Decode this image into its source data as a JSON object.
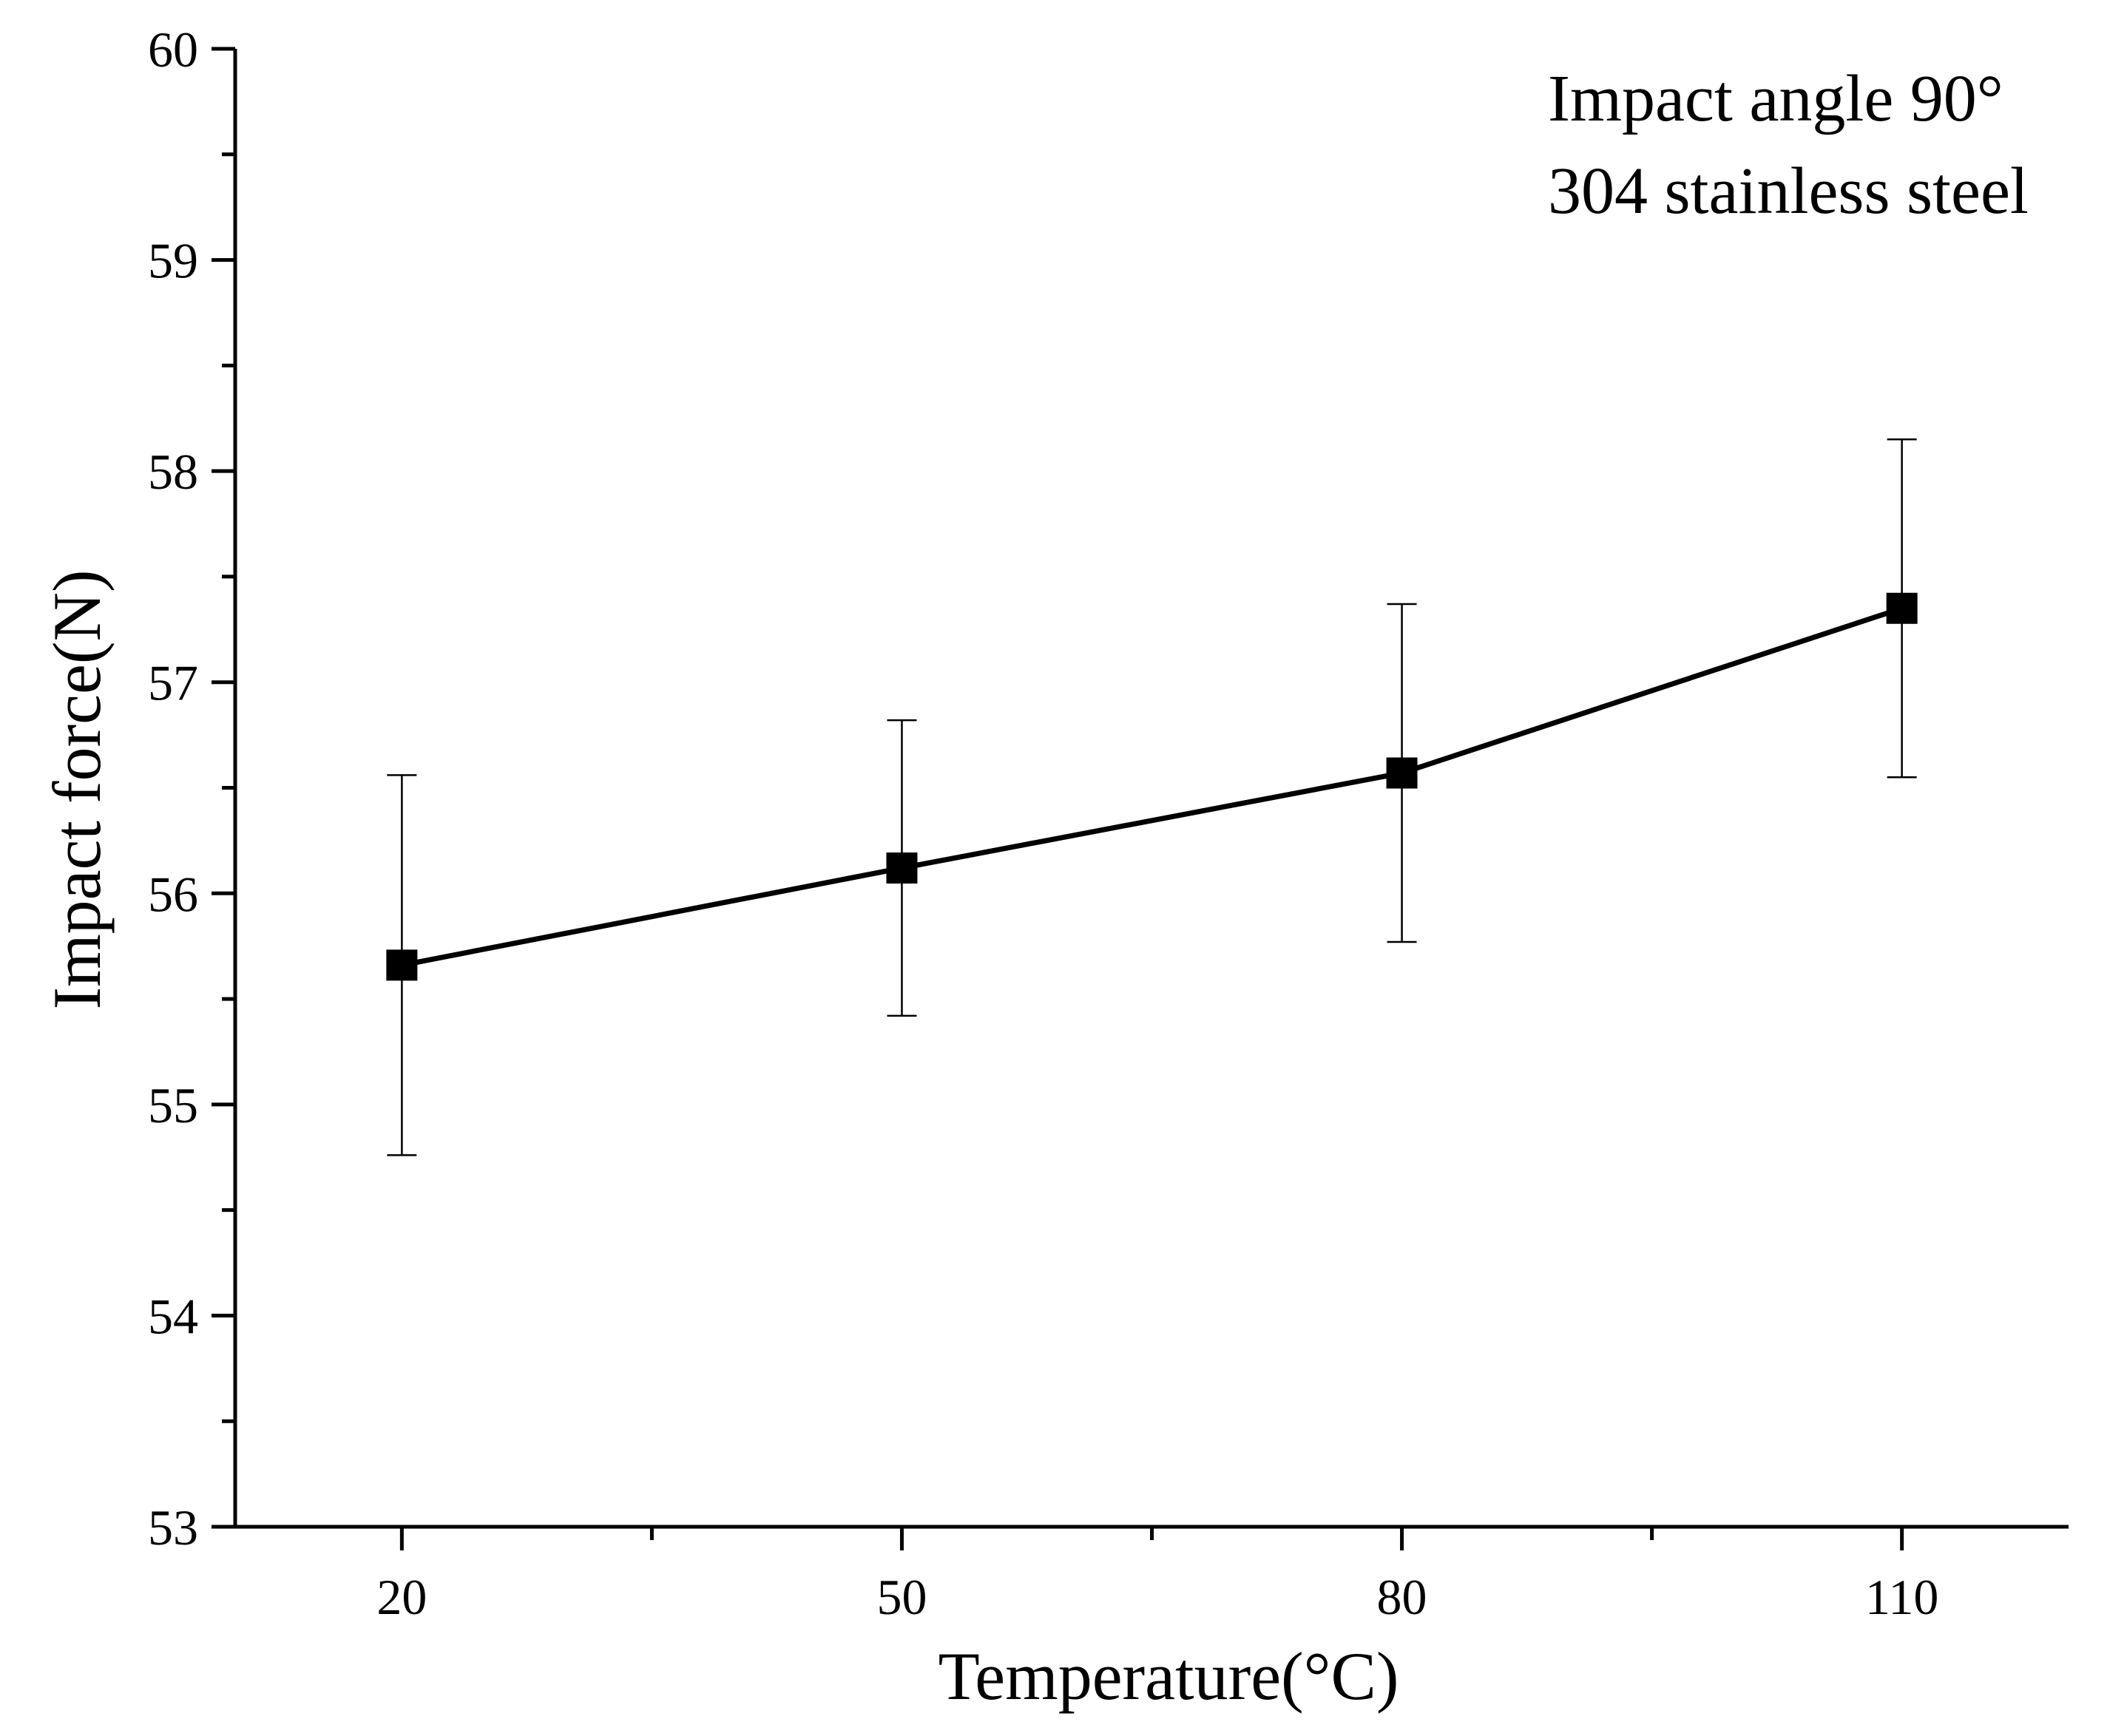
{
  "chart_data": {
    "type": "line",
    "title": "",
    "xlabel": "Temperature(°C)",
    "ylabel": "Impact force(N)",
    "x": [
      20,
      50,
      80,
      110
    ],
    "x_tick_labels": [
      "20",
      "50",
      "80",
      "110"
    ],
    "xlim": [
      10,
      120
    ],
    "ylim": [
      53,
      60
    ],
    "y_ticks": [
      53,
      54,
      55,
      56,
      57,
      58,
      59,
      60
    ],
    "y_tick_labels": [
      "53",
      "54",
      "55",
      "56",
      "57",
      "58",
      "59",
      "60"
    ],
    "grid": false,
    "series": [
      {
        "name": "Impact force",
        "values": [
          55.66,
          56.12,
          56.57,
          57.35
        ],
        "error_low": [
          54.76,
          55.42,
          55.77,
          56.55
        ],
        "error_high": [
          56.56,
          56.82,
          57.37,
          58.15
        ],
        "marker": "square",
        "color": "#000000"
      }
    ],
    "annotations": [
      "Impact angle 90°",
      "304 stainless steel"
    ]
  }
}
